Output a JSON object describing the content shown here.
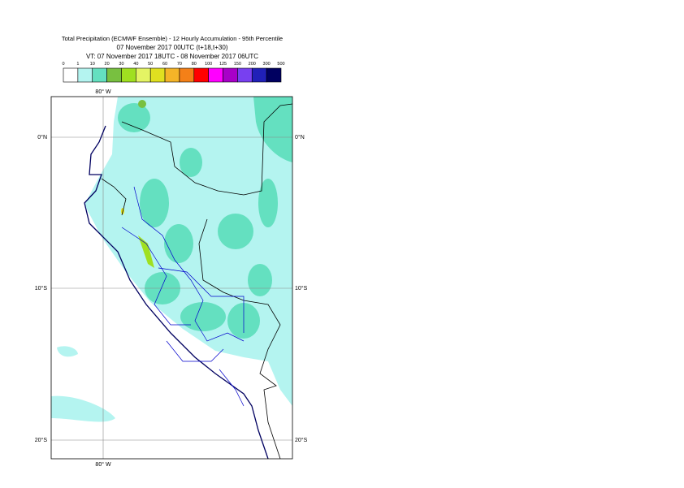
{
  "header": {
    "title": [
      "Total Precipitation (ECMWF Ensemble) - 12 Hourly Accumulation - 95th Percentile",
      "07 November 2017 00UTC (t+18,t+30)",
      "VT: 07 November 2017 18UTC - 08 November 2017 06UTC"
    ]
  },
  "legend": {
    "labels": [
      0,
      1,
      10,
      20,
      30,
      40,
      50,
      60,
      70,
      80,
      100,
      125,
      150,
      200,
      300,
      500
    ],
    "colors": [
      "#ffffff",
      "#b4f4f0",
      "#64e0c0",
      "#78c040",
      "#a0e020",
      "#e4f464",
      "#e0e020",
      "#f4b428",
      "#f48018",
      "#ff0000",
      "#ff00ff",
      "#a800c8",
      "#7840f0",
      "#2020b8",
      "#000060"
    ]
  },
  "map": {
    "lon_top": "80° W",
    "lon_bottom": "80° W",
    "lat_left": [
      "0°N",
      "10°S",
      "20°S"
    ],
    "lat_right": [
      "0°N",
      "10°S",
      "20°S"
    ]
  }
}
